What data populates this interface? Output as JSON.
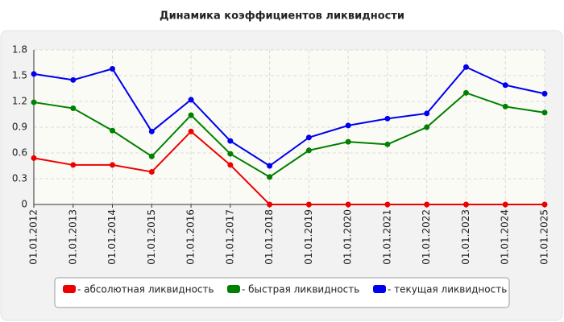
{
  "chart_data": {
    "type": "line",
    "title": "Динамика коэффициентов ликвидности",
    "categories": [
      "01.01.2012",
      "01.01.2013",
      "01.01.2014",
      "01.01.2015",
      "01.01.2016",
      "01.01.2017",
      "01.01.2018",
      "01.01.2019",
      "01.01.2020",
      "01.01.2021",
      "01.01.2022",
      "01.01.2023",
      "01.01.2024",
      "01.01.2025"
    ],
    "series": [
      {
        "name": "- абсолютная ликвидность",
        "color": "#ee0000",
        "values": [
          0.54,
          0.46,
          0.46,
          0.38,
          0.85,
          0.46,
          0,
          0,
          0,
          0,
          0,
          0,
          0,
          0
        ]
      },
      {
        "name": "- быстрая ликвидность",
        "color": "#008000",
        "values": [
          1.19,
          1.12,
          0.86,
          0.56,
          1.04,
          0.59,
          0.32,
          0.63,
          0.73,
          0.7,
          0.9,
          1.3,
          1.14,
          1.07
        ]
      },
      {
        "name": "- текущая ликвидность",
        "color": "#0000ee",
        "values": [
          1.52,
          1.45,
          1.58,
          0.85,
          1.22,
          0.74,
          0.45,
          0.78,
          0.92,
          1.0,
          1.06,
          1.6,
          1.39,
          1.29
        ]
      }
    ],
    "ylim": [
      0,
      1.8
    ],
    "yticks": [
      0,
      0.3,
      0.6,
      0.9,
      1.2,
      1.5,
      1.8
    ],
    "grid": true
  }
}
